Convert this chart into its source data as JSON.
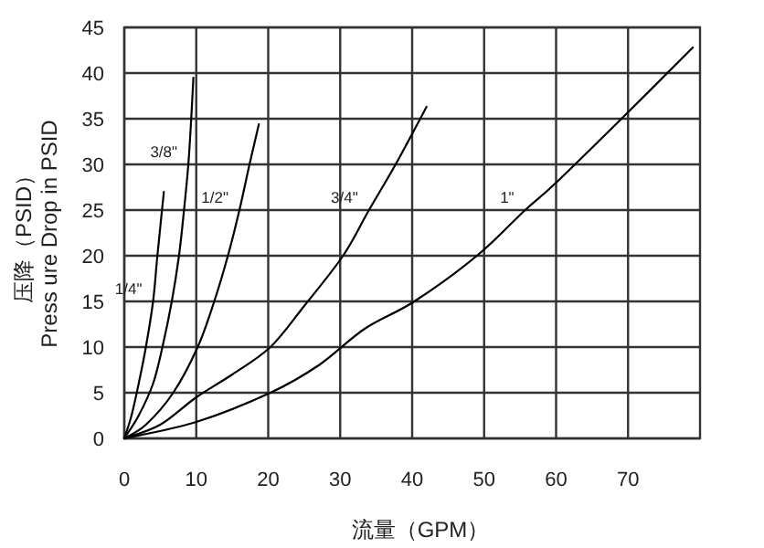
{
  "chart_data": {
    "type": "line",
    "xlabel": "流量（GPM）",
    "ylabel": "压降（PSID）\nPress ure Drop in PSID",
    "xlim": [
      0,
      80
    ],
    "xticks": [
      0,
      10,
      20,
      30,
      40,
      50,
      60,
      70
    ],
    "ylim": [
      0,
      45
    ],
    "yticks": [
      0,
      5,
      10,
      15,
      20,
      25,
      30,
      35,
      40,
      45
    ],
    "grid": true,
    "line_style": "solid",
    "series": [
      {
        "name": "1/4\"",
        "color": "#000000",
        "x": [
          0,
          1,
          2,
          3,
          4,
          4.6,
          5.5
        ],
        "values": [
          0,
          2.5,
          6,
          10,
          15,
          20,
          27
        ]
      },
      {
        "name": "3/8\"",
        "color": "#000000",
        "x": [
          0,
          2,
          4,
          5.3,
          6.6,
          7.6,
          8.3,
          8.9,
          9.3,
          9.6
        ],
        "values": [
          0,
          2.5,
          6,
          10,
          15,
          20,
          25,
          30,
          35,
          39.5
        ]
      },
      {
        "name": "1/2\"",
        "color": "#000000",
        "x": [
          0,
          3,
          6.8,
          10.2,
          12.5,
          14.4,
          16,
          17.4,
          18.7
        ],
        "values": [
          0,
          1.5,
          5,
          10,
          15,
          20,
          25,
          30,
          34.4
        ]
      },
      {
        "name": "3/4\"",
        "color": "#000000",
        "x": [
          0,
          5,
          10,
          15,
          20.3,
          25,
          30.4,
          34,
          37.7,
          42
        ],
        "values": [
          0,
          1.5,
          4.5,
          7,
          10,
          14.5,
          20,
          25,
          30,
          36.3
        ]
      },
      {
        "name": "1\"",
        "color": "#000000",
        "x": [
          0,
          10,
          20.3,
          27,
          33.4,
          40.3,
          49,
          55.7,
          60,
          69.6,
          79
        ],
        "values": [
          0,
          1.8,
          5,
          8,
          12,
          15,
          20,
          25,
          28,
          35.4,
          42.8
        ]
      }
    ]
  }
}
